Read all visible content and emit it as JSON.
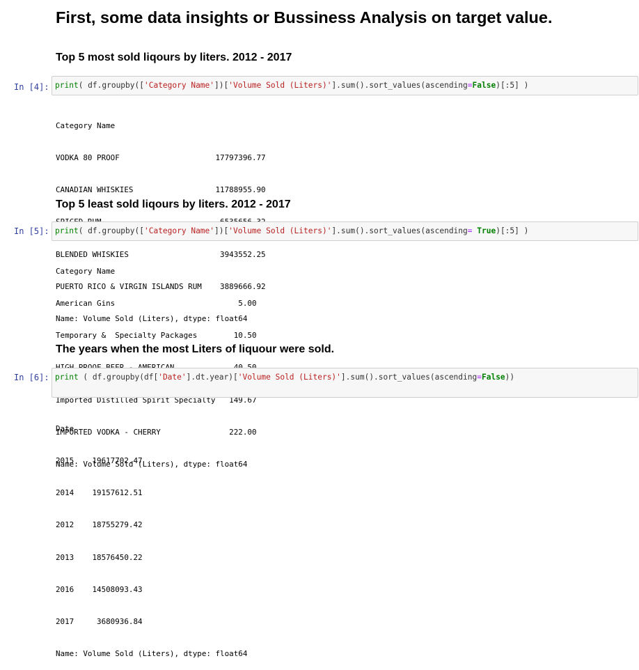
{
  "heading": "First, some data insights or Bussiness Analysis on target value.",
  "cells": [
    {
      "subheading": "Top 5 most sold liqours by liters. 2012 - 2017",
      "prompt": "In [4]:",
      "code": {
        "p1": "print",
        "p2": "( df.groupby([",
        "p3": "'Category Name'",
        "p4": "])[",
        "p5": "'Volume Sold (Liters)'",
        "p6": "].sum().sort_values(ascending",
        "p7": "=",
        "p8": "False",
        "p9": ")[:5] )"
      },
      "output": [
        "Category Name",
        "VODKA 80 PROOF                     17797396.77",
        "CANADIAN WHISKIES                  11788955.90",
        "SPICED RUM                          6535656.32",
        "BLENDED WHISKIES                    3943552.25",
        "PUERTO RICO & VIRGIN ISLANDS RUM    3889666.92",
        "Name: Volume Sold (Liters), dtype: float64"
      ]
    },
    {
      "subheading": "Top 5 least sold liqours by liters. 2012 - 2017",
      "prompt": "In [5]:",
      "code": {
        "p1": "print",
        "p2": "( df.groupby([",
        "p3": "'Category Name'",
        "p4": "])[",
        "p5": "'Volume Sold (Liters)'",
        "p6": "].sum().sort_values(ascending",
        "p7": "=",
        "p8": " True",
        "p9": ")[:5] )"
      },
      "output": [
        "Category Name",
        "American Gins                           5.00",
        "Temporary &  Specialty Packages        10.50",
        "HIGH PROOF BEER - AMERICAN             40.50",
        "Imported Distilled Spirit Specialty   149.67",
        "IMPORTED VODKA - CHERRY               222.00",
        "Name: Volume Sold (Liters), dtype: float64"
      ]
    },
    {
      "subheading": "The years when the most Liters of liquour were sold.",
      "prompt": "In [6]:",
      "code": {
        "p1": "print",
        "p2": " ( df.groupby(df[",
        "p3": "'Date'",
        "p4": "].dt.year)[",
        "p5": "'Volume Sold (Liters)'",
        "p6": "].sum().sort_values(ascending",
        "p7": "=",
        "p8": "False",
        "p9": "))"
      },
      "output": [
        "Date",
        "2015    19617702.47",
        "2014    19157612.51",
        "2012    18755279.42",
        "2013    18576450.22",
        "2016    14508093.43",
        "2017     3680936.84",
        "Name: Volume Sold (Liters), dtype: float64"
      ]
    }
  ]
}
